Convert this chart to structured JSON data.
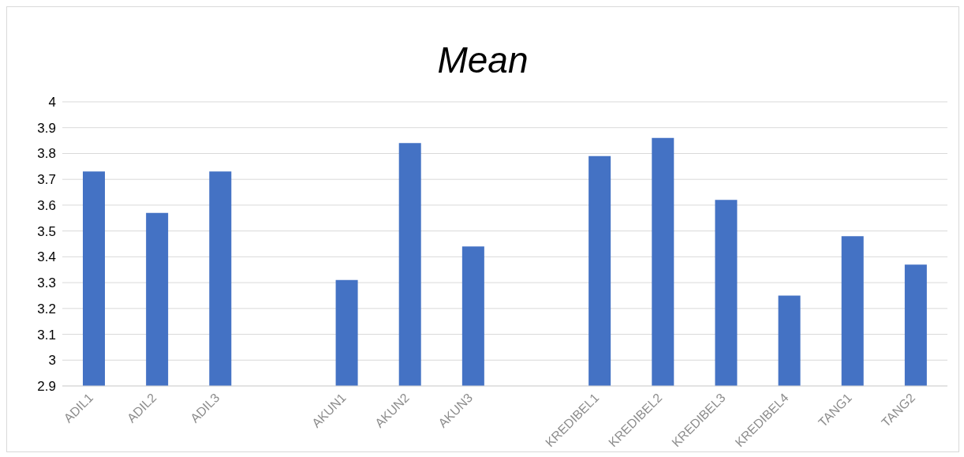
{
  "chart_data": {
    "type": "bar",
    "title": "Mean",
    "categories": [
      "ADIL1",
      "ADIL2",
      "ADIL3",
      null,
      "AKUN1",
      "AKUN2",
      "AKUN3",
      null,
      "KREDIBEL1",
      "KREDIBEL2",
      "KREDIBEL3",
      "KREDIBEL4",
      "TANG1",
      "TANG2"
    ],
    "values": [
      3.73,
      3.57,
      3.73,
      null,
      3.31,
      3.84,
      3.44,
      null,
      3.79,
      3.86,
      3.62,
      3.25,
      3.48,
      3.37
    ],
    "color": "#4472c4",
    "ylim": [
      2.9,
      4
    ],
    "yticks": [
      2.9,
      3,
      3.1,
      3.2,
      3.3,
      3.4,
      3.5,
      3.6,
      3.7,
      3.8,
      3.9,
      4
    ],
    "grid": "y"
  }
}
